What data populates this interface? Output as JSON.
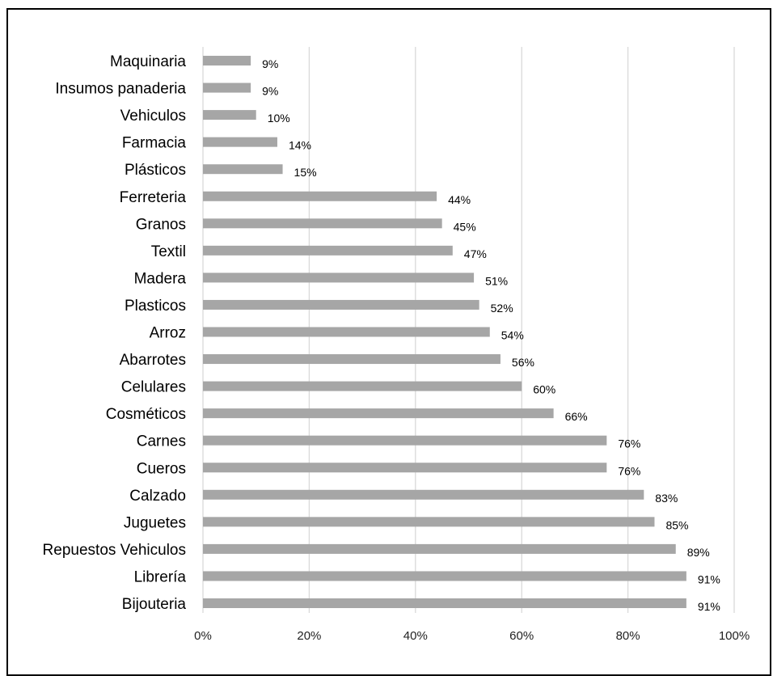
{
  "chart_data": {
    "type": "bar",
    "orientation": "horizontal",
    "categories": [
      "Maquinaria",
      "Insumos panaderia",
      "Vehiculos",
      "Farmacia",
      "Plásticos",
      "Ferreteria",
      "Granos",
      "Textil",
      "Madera",
      "Plasticos",
      "Arroz",
      "Abarrotes",
      "Celulares",
      "Cosméticos",
      "Carnes",
      "Cueros",
      "Calzado",
      "Juguetes",
      "Repuestos Vehiculos",
      "Librería",
      "Bijouteria"
    ],
    "values": [
      0.09,
      0.09,
      0.1,
      0.14,
      0.15,
      0.44,
      0.45,
      0.47,
      0.51,
      0.52,
      0.54,
      0.56,
      0.6,
      0.66,
      0.76,
      0.76,
      0.83,
      0.85,
      0.89,
      0.91,
      0.91
    ],
    "value_labels": [
      "9%",
      "9%",
      "10%",
      "14%",
      "15%",
      "44%",
      "45%",
      "47%",
      "51%",
      "52%",
      "54%",
      "56%",
      "60%",
      "66%",
      "76%",
      "76%",
      "83%",
      "85%",
      "89%",
      "91%",
      "91%"
    ],
    "x_ticks": [
      0,
      0.2,
      0.4,
      0.6,
      0.8,
      1.0
    ],
    "x_tick_labels": [
      "0%",
      "20%",
      "40%",
      "60%",
      "80%",
      "100%"
    ],
    "xlim": [
      0,
      1
    ],
    "title": "",
    "xlabel": "",
    "ylabel": "",
    "grid": "vertical",
    "legend": "none",
    "colors": {
      "bar": "#a6a6a6",
      "grid": "#d9d9d9",
      "text": "#000000"
    }
  }
}
